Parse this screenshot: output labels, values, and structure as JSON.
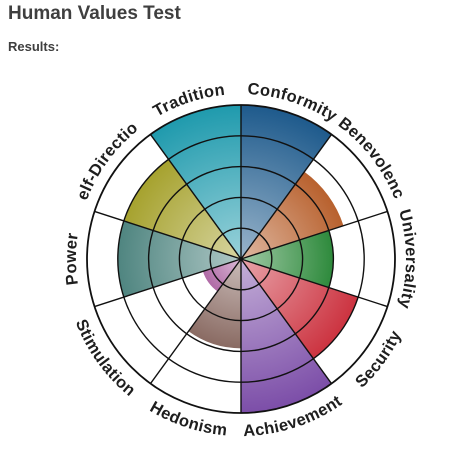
{
  "header": {
    "title": "Human Values Test",
    "subtitle": "Results:"
  },
  "chart_data": {
    "type": "polar-area",
    "rings": 5,
    "max": 5,
    "grid": true,
    "categories": [
      "Conformity",
      "Benevolence",
      "Universality",
      "Security",
      "Achievement",
      "Hedonism",
      "Stimulation",
      "Power",
      "Self-Direction",
      "Tradition"
    ],
    "values": [
      5,
      3.5,
      3,
      4,
      5,
      2.9,
      1.3,
      4,
      4,
      5
    ],
    "colors": [
      "#1e5a8c",
      "#b8612e",
      "#2e8a3c",
      "#cc3340",
      "#7c4ea8",
      "#8a6b63",
      "#b06aa6",
      "#4f8580",
      "#a6a22e",
      "#1f9aad"
    ]
  }
}
